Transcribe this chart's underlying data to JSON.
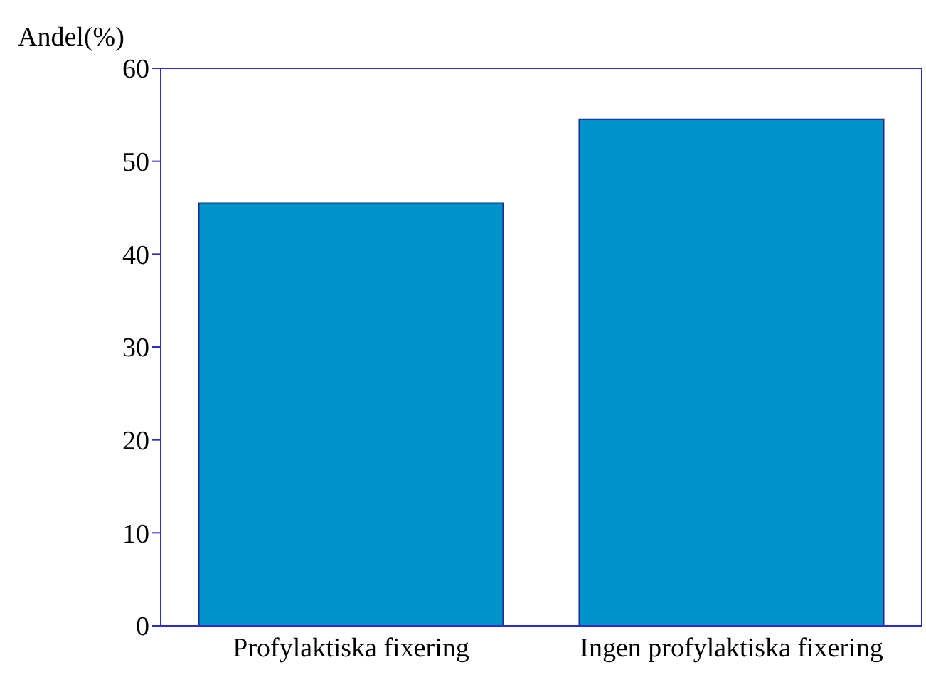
{
  "chart_data": {
    "type": "bar",
    "ylabel": "Andel(%)",
    "categories": [
      "Profylaktiska fixering",
      "Ingen profylaktiska fixering"
    ],
    "values": [
      45.5,
      54.5
    ],
    "color": "#0093c9",
    "ylim": [
      0,
      60
    ],
    "yticks": [
      0,
      10,
      20,
      30,
      40,
      50,
      60
    ],
    "grid": false,
    "legend": false
  }
}
